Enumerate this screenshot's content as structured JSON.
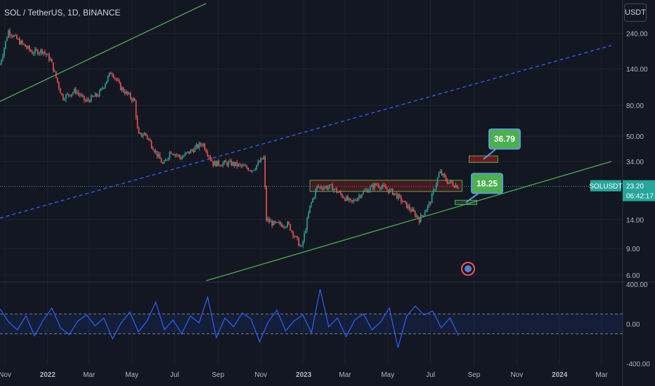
{
  "header": {
    "title": "SOL / TetherUS, 1D, BINANCE",
    "currency_button": "USDT"
  },
  "price_tag": {
    "symbol": "SOLUSDT",
    "price": "23.20",
    "countdown": "06:42:17"
  },
  "colors": {
    "background": "#131722",
    "up": "#26a69a",
    "down": "#ef5350",
    "trendline": "#4caf50",
    "midline": "#2962ff",
    "rsi": "#2962ff"
  },
  "annotations": [
    {
      "label": "36.79",
      "kind": "target",
      "zone_color": "#b71c1c"
    },
    {
      "label": "18.25",
      "kind": "support",
      "zone_color": "#4caf50"
    }
  ],
  "chart_data": [
    {
      "type": "candlestick",
      "title": "SOL / TetherUS, 1D, BINANCE",
      "y_scale": "log",
      "ylim": [
        5.5,
        400
      ],
      "y_ticks": [
        "240.00",
        "140.00",
        "80.00",
        "50.00",
        "34.00",
        "23.20",
        "14.00",
        "9.00",
        "6.00"
      ],
      "x_ticks": [
        "Nov",
        "2022",
        "Mar",
        "May",
        "Jul",
        "Sep",
        "Nov",
        "2023",
        "Mar",
        "May",
        "Jul",
        "Sep",
        "Nov",
        "2024",
        "Mar"
      ],
      "x_range": [
        "2021-10-25",
        "2024-03-31"
      ],
      "last_price": 23.2,
      "price_path": [
        [
          "2021-10-25",
          150
        ],
        [
          "2021-11-06",
          250
        ],
        [
          "2021-11-20",
          215
        ],
        [
          "2021-12-10",
          180
        ],
        [
          "2021-12-25",
          185
        ],
        [
          "2022-01-05",
          160
        ],
        [
          "2022-01-22",
          90
        ],
        [
          "2022-02-10",
          100
        ],
        [
          "2022-02-24",
          85
        ],
        [
          "2022-03-15",
          95
        ],
        [
          "2022-04-02",
          135
        ],
        [
          "2022-04-15",
          105
        ],
        [
          "2022-05-05",
          85
        ],
        [
          "2022-05-10",
          50
        ],
        [
          "2022-05-20",
          52
        ],
        [
          "2022-06-15",
          32
        ],
        [
          "2022-06-25",
          40
        ],
        [
          "2022-07-10",
          36
        ],
        [
          "2022-08-10",
          45
        ],
        [
          "2022-08-25",
          33
        ],
        [
          "2022-09-20",
          33
        ],
        [
          "2022-10-20",
          30
        ],
        [
          "2022-11-05",
          36
        ],
        [
          "2022-11-09",
          14
        ],
        [
          "2022-11-20",
          13
        ],
        [
          "2022-12-10",
          13
        ],
        [
          "2022-12-29",
          9
        ],
        [
          "2023-01-10",
          17
        ],
        [
          "2023-01-20",
          23
        ],
        [
          "2023-02-10",
          23
        ],
        [
          "2023-03-10",
          18
        ],
        [
          "2023-03-25",
          21
        ],
        [
          "2023-04-15",
          24
        ],
        [
          "2023-05-10",
          21
        ],
        [
          "2023-06-10",
          15
        ],
        [
          "2023-06-15",
          14
        ],
        [
          "2023-06-30",
          18
        ],
        [
          "2023-07-14",
          29
        ],
        [
          "2023-07-25",
          25
        ],
        [
          "2023-08-10",
          23.2
        ]
      ],
      "annotations": [
        {
          "label": "36.79",
          "zone_price": [
            33.5,
            37
          ],
          "zone_dates": [
            "2023-08-25",
            "2023-10-05"
          ]
        },
        {
          "label": "18.25",
          "zone_price": [
            17.6,
            18.8
          ],
          "zone_dates": [
            "2023-08-05",
            "2023-09-05"
          ]
        }
      ],
      "resistance_zone": {
        "price": [
          21.5,
          25.5
        ],
        "dates": [
          "2023-01-10",
          "2023-08-15"
        ]
      },
      "trendlines": [
        {
          "name": "upper channel",
          "points": [
            [
              "2021-10-25",
              85
            ],
            [
              "2022-08-15",
              380
            ]
          ],
          "style": "solid"
        },
        {
          "name": "mid channel",
          "points": [
            [
              "2021-10-25",
              14.3
            ],
            [
              "2024-03-15",
              200
            ]
          ],
          "style": "dashed"
        },
        {
          "name": "lower channel",
          "points": [
            [
              "2022-08-15",
              5.5
            ],
            [
              "2024-03-15",
              34
            ]
          ],
          "style": "solid"
        }
      ]
    },
    {
      "type": "line",
      "title": "",
      "ylim": [
        -400,
        400
      ],
      "y_ticks": [
        "400.00",
        "0.00",
        "-400.00"
      ],
      "band": [
        -100,
        100
      ],
      "series": [
        {
          "values": [
            150,
            20,
            -60,
            80,
            -120,
            40,
            160,
            -40,
            -110,
            30,
            90,
            -20,
            60,
            -150,
            10,
            120,
            -80,
            30,
            220,
            -60,
            40,
            -100,
            80,
            10,
            270,
            -140,
            60,
            -30,
            110,
            50,
            -180,
            20,
            140,
            -70,
            30,
            90,
            -90,
            350,
            -30,
            60,
            -130,
            40,
            100,
            -60,
            20,
            160,
            -240,
            80,
            180,
            90,
            130,
            -40,
            60,
            -120
          ]
        }
      ]
    }
  ]
}
